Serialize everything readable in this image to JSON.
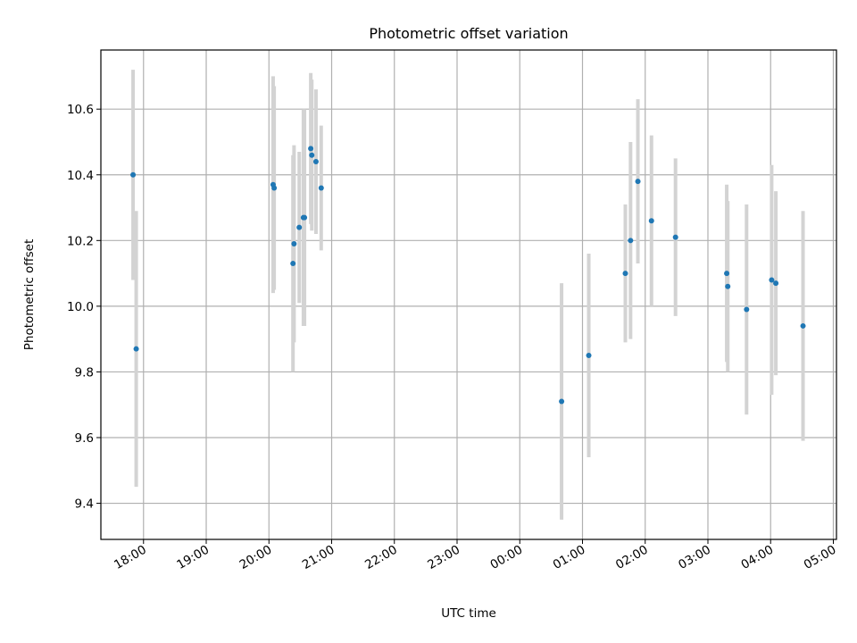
{
  "chart_data": {
    "type": "scatter",
    "title": "Photometric offset variation",
    "xlabel": "UTC time",
    "ylabel": "Photometric offset",
    "x_tick_labels": [
      "18:00",
      "19:00",
      "20:00",
      "21:00",
      "22:00",
      "23:00",
      "00:00",
      "01:00",
      "02:00",
      "03:00",
      "04:00",
      "05:00"
    ],
    "x_tick_hours": [
      18,
      19,
      20,
      21,
      22,
      23,
      24,
      25,
      26,
      27,
      28,
      29
    ],
    "xlim_hours": [
      17.32,
      29.05
    ],
    "ylim": [
      9.29,
      10.78
    ],
    "y_ticks": [
      9.4,
      9.6,
      9.8,
      10.0,
      10.2,
      10.4,
      10.6
    ],
    "y_tick_labels": [
      "9.4",
      "9.6",
      "9.8",
      "10.0",
      "10.2",
      "10.4",
      "10.6"
    ],
    "grid": true,
    "point_color": "#1f77b4",
    "errorbar_color": "#d3d3d3",
    "points": [
      {
        "time": "17:50",
        "y": 10.4,
        "err": 0.32
      },
      {
        "time": "17:53",
        "y": 9.87,
        "err": 0.42
      },
      {
        "time": "20:04",
        "y": 10.37,
        "err": 0.33
      },
      {
        "time": "20:05",
        "y": 10.36,
        "err": 0.31
      },
      {
        "time": "20:23",
        "y": 10.13,
        "err": 0.33
      },
      {
        "time": "20:24",
        "y": 10.19,
        "err": 0.3
      },
      {
        "time": "20:29",
        "y": 10.24,
        "err": 0.23
      },
      {
        "time": "20:33",
        "y": 10.27,
        "err": 0.33
      },
      {
        "time": "20:34",
        "y": 10.27,
        "err": 0.33
      },
      {
        "time": "20:40",
        "y": 10.48,
        "err": 0.23
      },
      {
        "time": "20:41",
        "y": 10.46,
        "err": 0.23
      },
      {
        "time": "20:45",
        "y": 10.44,
        "err": 0.22
      },
      {
        "time": "20:50",
        "y": 10.36,
        "err": 0.19
      },
      {
        "time": "00:40",
        "y": 9.71,
        "err": 0.36
      },
      {
        "time": "01:06",
        "y": 9.85,
        "err": 0.31
      },
      {
        "time": "01:41",
        "y": 10.1,
        "err": 0.21
      },
      {
        "time": "01:46",
        "y": 10.2,
        "err": 0.3
      },
      {
        "time": "01:53",
        "y": 10.38,
        "err": 0.25
      },
      {
        "time": "02:06",
        "y": 10.26,
        "err": 0.26
      },
      {
        "time": "02:29",
        "y": 10.21,
        "err": 0.24
      },
      {
        "time": "03:18",
        "y": 10.1,
        "err": 0.27
      },
      {
        "time": "03:19",
        "y": 10.06,
        "err": 0.26
      },
      {
        "time": "03:37",
        "y": 9.99,
        "err": 0.32
      },
      {
        "time": "04:01",
        "y": 10.08,
        "err": 0.35
      },
      {
        "time": "04:05",
        "y": 10.07,
        "err": 0.28
      },
      {
        "time": "04:31",
        "y": 9.94,
        "err": 0.35
      }
    ]
  }
}
